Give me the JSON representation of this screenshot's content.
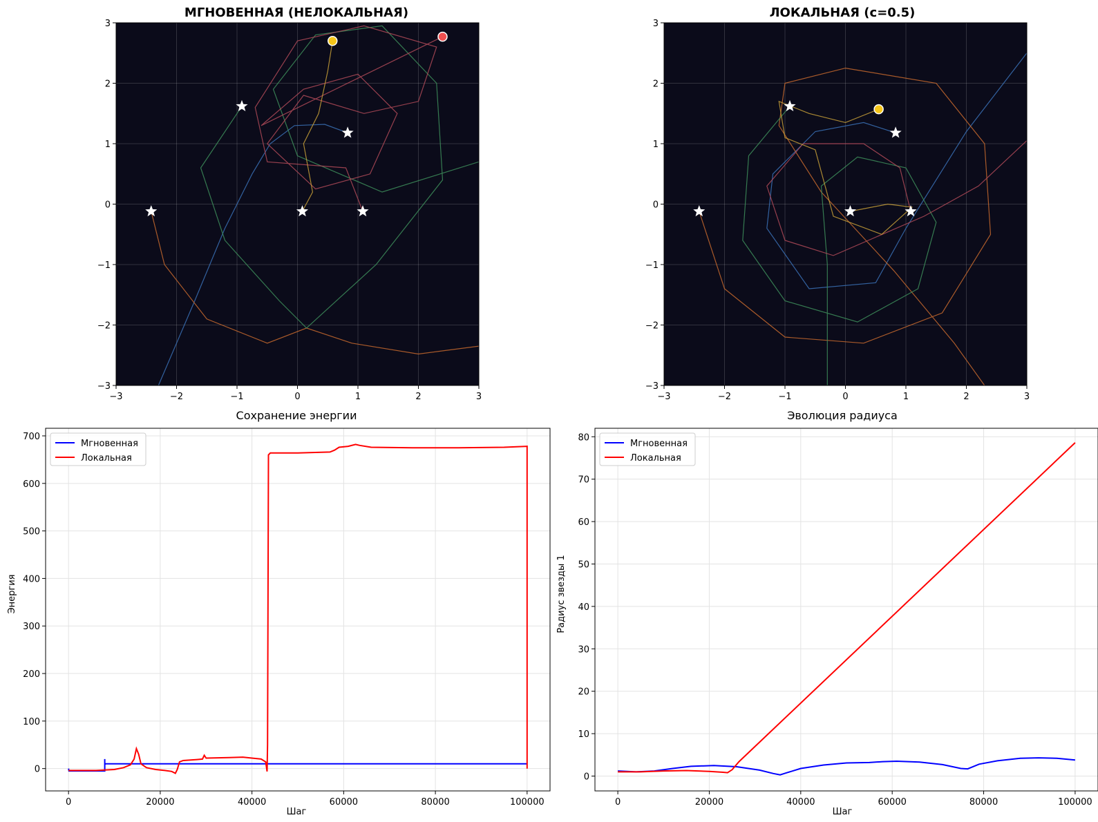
{
  "chart_data": [
    {
      "type": "scatter",
      "title": "МГНОВЕННАЯ (НЕЛОКАЛЬНАЯ)",
      "xlabel": "",
      "ylabel": "",
      "xlim": [
        -3,
        3
      ],
      "ylim": [
        -3,
        3
      ],
      "x_ticks": [
        "−3",
        "−2",
        "−1",
        "0",
        "1",
        "2",
        "3"
      ],
      "y_ticks": [
        "−3",
        "−2",
        "−1",
        "0",
        "1",
        "2",
        "3"
      ],
      "background": "#0b0b1a",
      "grid": true,
      "stars": [
        [
          -2.42,
          -0.12
        ],
        [
          -0.92,
          1.62
        ],
        [
          0.08,
          -0.12
        ],
        [
          0.83,
          1.18
        ],
        [
          1.08,
          -0.12
        ]
      ],
      "markers": [
        {
          "x": 0.58,
          "y": 2.7,
          "color": "#f5c518"
        },
        {
          "x": 2.4,
          "y": 2.77,
          "color": "#f05050"
        }
      ],
      "trajectories": [
        {
          "color": "#3b72b8",
          "points": [
            [
              -2.3,
              -3
            ],
            [
              -1.7,
              -1.6
            ],
            [
              -1.2,
              -0.4
            ],
            [
              -0.75,
              0.5
            ],
            [
              -0.45,
              1.0
            ],
            [
              -0.05,
              1.3
            ],
            [
              0.45,
              1.32
            ],
            [
              0.83,
              1.18
            ]
          ]
        },
        {
          "color": "#c86a2e",
          "points": [
            [
              -2.42,
              -0.12
            ],
            [
              -2.2,
              -1.0
            ],
            [
              -1.5,
              -1.9
            ],
            [
              -0.5,
              -2.3
            ],
            [
              0.15,
              -2.05
            ],
            [
              0.9,
              -2.3
            ],
            [
              2.0,
              -2.48
            ],
            [
              3.0,
              -2.35
            ]
          ]
        },
        {
          "color": "#3e8f5c",
          "points": [
            [
              -0.92,
              1.62
            ],
            [
              -1.6,
              0.6
            ],
            [
              -1.2,
              -0.6
            ],
            [
              -0.3,
              -1.6
            ],
            [
              0.15,
              -2.05
            ],
            [
              1.3,
              -1.0
            ],
            [
              2.4,
              0.4
            ],
            [
              2.3,
              2.0
            ],
            [
              1.4,
              2.95
            ],
            [
              0.3,
              2.8
            ],
            [
              -0.4,
              1.9
            ],
            [
              0.0,
              0.8
            ],
            [
              1.4,
              0.2
            ],
            [
              3.0,
              0.7
            ]
          ]
        },
        {
          "color": "#b04a58",
          "points": [
            [
              1.08,
              -0.12
            ],
            [
              0.8,
              0.6
            ],
            [
              -0.5,
              0.7
            ],
            [
              -0.7,
              1.6
            ],
            [
              0,
              2.7
            ],
            [
              1.1,
              2.95
            ],
            [
              2.3,
              2.6
            ],
            [
              2.0,
              1.7
            ],
            [
              1.1,
              1.5
            ],
            [
              0.1,
              1.8
            ],
            [
              -0.5,
              1.0
            ],
            [
              0.3,
              0.25
            ],
            [
              1.2,
              0.5
            ],
            [
              1.65,
              1.5
            ],
            [
              1.0,
              2.15
            ],
            [
              0.1,
              1.9
            ],
            [
              -0.6,
              1.3
            ],
            [
              2.4,
              2.77
            ]
          ]
        },
        {
          "color": "#c8a038",
          "points": [
            [
              0.08,
              -0.12
            ],
            [
              0.25,
              0.2
            ],
            [
              0.1,
              1.0
            ],
            [
              0.35,
              1.5
            ],
            [
              0.5,
              2.2
            ],
            [
              0.58,
              2.7
            ]
          ]
        }
      ]
    },
    {
      "type": "scatter",
      "title": "ЛОКАЛЬНАЯ (c=0.5)",
      "xlabel": "",
      "ylabel": "",
      "xlim": [
        -3,
        3
      ],
      "ylim": [
        -3,
        3
      ],
      "x_ticks": [
        "−3",
        "−2",
        "−1",
        "0",
        "1",
        "2",
        "3"
      ],
      "y_ticks": [
        "−3",
        "−2",
        "−1",
        "0",
        "1",
        "2",
        "3"
      ],
      "background": "#0b0b1a",
      "grid": true,
      "stars": [
        [
          -2.42,
          -0.12
        ],
        [
          -0.92,
          1.62
        ],
        [
          0.08,
          -0.12
        ],
        [
          0.83,
          1.18
        ],
        [
          1.08,
          -0.12
        ]
      ],
      "markers": [
        {
          "x": 0.55,
          "y": 1.57,
          "color": "#f5c518"
        }
      ],
      "trajectories": [
        {
          "color": "#3b72b8",
          "points": [
            [
              0.83,
              1.18
            ],
            [
              0.3,
              1.35
            ],
            [
              -0.5,
              1.2
            ],
            [
              -1.2,
              0.5
            ],
            [
              -1.3,
              -0.4
            ],
            [
              -0.6,
              -1.4
            ],
            [
              0.5,
              -1.3
            ],
            [
              1.0,
              -0.4
            ],
            [
              2.0,
              1.2
            ],
            [
              3.0,
              2.5
            ]
          ]
        },
        {
          "color": "#c86a2e",
          "points": [
            [
              -2.42,
              -0.12
            ],
            [
              -2.0,
              -1.4
            ],
            [
              -1.0,
              -2.2
            ],
            [
              0.3,
              -2.3
            ],
            [
              1.6,
              -1.8
            ],
            [
              2.4,
              -0.5
            ],
            [
              2.3,
              1.0
            ],
            [
              1.5,
              2.0
            ],
            [
              0,
              2.25
            ],
            [
              -1.0,
              2.0
            ],
            [
              -1.1,
              1.3
            ],
            [
              -0.4,
              0.2
            ],
            [
              0.8,
              -1.1
            ],
            [
              1.8,
              -2.3
            ],
            [
              2.3,
              -3
            ]
          ]
        },
        {
          "color": "#3e8f5c",
          "points": [
            [
              -0.92,
              1.62
            ],
            [
              -1.6,
              0.8
            ],
            [
              -1.7,
              -0.6
            ],
            [
              -1.0,
              -1.6
            ],
            [
              0.2,
              -1.95
            ],
            [
              1.2,
              -1.4
            ],
            [
              1.5,
              -0.3
            ],
            [
              1.0,
              0.6
            ],
            [
              0.2,
              0.78
            ],
            [
              -0.4,
              0.3
            ],
            [
              -0.3,
              -1.0
            ],
            [
              -0.3,
              -3
            ]
          ]
        },
        {
          "color": "#b04a58",
          "points": [
            [
              1.08,
              -0.12
            ],
            [
              0.9,
              0.6
            ],
            [
              0.3,
              1.0
            ],
            [
              -0.7,
              1.0
            ],
            [
              -1.3,
              0.3
            ],
            [
              -1.0,
              -0.6
            ],
            [
              -0.2,
              -0.85
            ],
            [
              1.3,
              -0.2
            ],
            [
              2.2,
              0.3
            ],
            [
              3.0,
              1.05
            ]
          ]
        },
        {
          "color": "#c8a038",
          "points": [
            [
              0.08,
              -0.12
            ],
            [
              0.7,
              0.0
            ],
            [
              1.1,
              -0.05
            ],
            [
              0.6,
              -0.5
            ],
            [
              -0.2,
              -0.2
            ],
            [
              -0.5,
              0.9
            ],
            [
              -1.0,
              1.1
            ],
            [
              -1.1,
              1.7
            ],
            [
              -0.6,
              1.5
            ],
            [
              0.0,
              1.35
            ],
            [
              0.55,
              1.57
            ]
          ]
        }
      ]
    },
    {
      "type": "line",
      "title": "Сохранение энергии",
      "xlabel": "Шаг",
      "ylabel": "Энергия",
      "xlim": [
        -5000,
        105000
      ],
      "ylim": [
        -47,
        716
      ],
      "x_ticks": [
        0,
        20000,
        40000,
        60000,
        80000,
        100000
      ],
      "y_ticks": [
        0,
        100,
        200,
        300,
        400,
        500,
        600,
        700
      ],
      "grid": true,
      "legend": "upper-left",
      "series": [
        {
          "name": "Мгновенная",
          "color": "#0000ff",
          "points": [
            [
              0,
              0
            ],
            [
              100,
              -5
            ],
            [
              7900,
              -5
            ],
            [
              7900,
              20
            ],
            [
              7900,
              8
            ],
            [
              8000,
              10
            ],
            [
              43300,
              10
            ],
            [
              100000,
              10
            ]
          ]
        },
        {
          "name": "Локальная",
          "color": "#ff0000",
          "points": [
            [
              0,
              -4
            ],
            [
              6000,
              -4
            ],
            [
              10000,
              -2
            ],
            [
              12000,
              2
            ],
            [
              13500,
              8
            ],
            [
              14300,
              20
            ],
            [
              14800,
              42
            ],
            [
              15300,
              30
            ],
            [
              15800,
              10
            ],
            [
              17000,
              2
            ],
            [
              19000,
              -2
            ],
            [
              21000,
              -4
            ],
            [
              22500,
              -6
            ],
            [
              23300,
              -10
            ],
            [
              23700,
              -2
            ],
            [
              24200,
              14
            ],
            [
              25000,
              17
            ],
            [
              28000,
              19
            ],
            [
              29200,
              20
            ],
            [
              29600,
              28
            ],
            [
              30000,
              22
            ],
            [
              35000,
              23
            ],
            [
              38000,
              24
            ],
            [
              40000,
              22
            ],
            [
              42000,
              20
            ],
            [
              43000,
              14
            ],
            [
              43300,
              -6
            ],
            [
              43400,
              50
            ],
            [
              43600,
              660
            ],
            [
              44000,
              664
            ],
            [
              50000,
              664
            ],
            [
              57000,
              666
            ],
            [
              58000,
              670
            ],
            [
              59000,
              676
            ],
            [
              61000,
              678
            ],
            [
              62600,
              682
            ],
            [
              63500,
              680
            ],
            [
              66000,
              676
            ],
            [
              75000,
              675
            ],
            [
              85000,
              675
            ],
            [
              95000,
              676
            ],
            [
              100000,
              678
            ],
            [
              100000,
              0
            ]
          ]
        }
      ]
    },
    {
      "type": "line",
      "title": "Эволюция радиуса",
      "xlabel": "Шаг",
      "ylabel": "Радиус звезды 1",
      "xlim": [
        -5000,
        105000
      ],
      "ylim": [
        -3.5,
        82
      ],
      "x_ticks": [
        0,
        20000,
        40000,
        60000,
        80000,
        100000
      ],
      "y_ticks": [
        0,
        10,
        20,
        30,
        40,
        50,
        60,
        70,
        80
      ],
      "grid": true,
      "legend": "upper-left",
      "series": [
        {
          "name": "Мгновенная",
          "color": "#0000ff",
          "points": [
            [
              0,
              1.2
            ],
            [
              4000,
              1.0
            ],
            [
              8000,
              1.2
            ],
            [
              12000,
              1.8
            ],
            [
              16000,
              2.3
            ],
            [
              21000,
              2.5
            ],
            [
              26000,
              2.2
            ],
            [
              31000,
              1.4
            ],
            [
              34000,
              0.6
            ],
            [
              35500,
              0.3
            ],
            [
              37000,
              0.8
            ],
            [
              40000,
              1.8
            ],
            [
              45000,
              2.6
            ],
            [
              50000,
              3.1
            ],
            [
              55000,
              3.2
            ],
            [
              58000,
              3.4
            ],
            [
              61000,
              3.5
            ],
            [
              66000,
              3.3
            ],
            [
              71000,
              2.7
            ],
            [
              75000,
              1.8
            ],
            [
              76500,
              1.7
            ],
            [
              79000,
              2.8
            ],
            [
              83000,
              3.6
            ],
            [
              88000,
              4.2
            ],
            [
              92000,
              4.3
            ],
            [
              96000,
              4.2
            ],
            [
              100000,
              3.8
            ]
          ]
        },
        {
          "name": "Локальная",
          "color": "#ff0000",
          "points": [
            [
              0,
              1.0
            ],
            [
              5000,
              1.0
            ],
            [
              10000,
              1.2
            ],
            [
              15000,
              1.3
            ],
            [
              20000,
              1.1
            ],
            [
              23000,
              0.9
            ],
            [
              24000,
              0.8
            ],
            [
              25000,
              1.5
            ],
            [
              26500,
              3.4
            ],
            [
              100000,
              78.6
            ]
          ]
        }
      ]
    }
  ]
}
